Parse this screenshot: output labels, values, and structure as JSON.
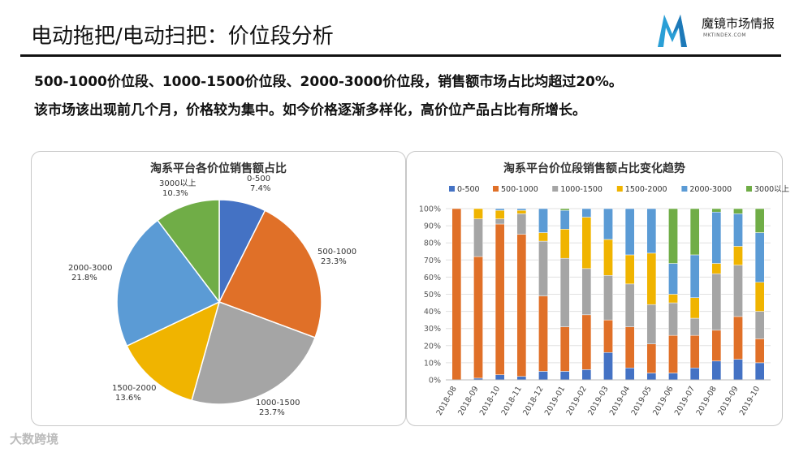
{
  "header": {
    "title": "电动拖把/电动扫把：价位段分析",
    "logo_name": "魔镜市场情报",
    "logo_url": "MKTINDEX.COM"
  },
  "summary": {
    "line1": "500-1000价位段、1000-1500价位段、2000-3000价位段，销售额市场占比均超过20%。",
    "line2": "该市场该出现前几个月，价格较为集中。如今价格逐渐多样化，高价位产品占比有所增长。"
  },
  "watermark": "大数跨境",
  "colors": {
    "c0_500": "#4472c4",
    "c500_1000": "#e07028",
    "c1000_1500": "#a5a5a5",
    "c1500_2000": "#f0b400",
    "c2000_3000": "#5b9bd5",
    "c3000": "#70ad47"
  },
  "chart_data": [
    {
      "type": "pie",
      "title": "淘系平台各价位销售额占比",
      "slices": [
        {
          "label": "0-500",
          "value": 7.4,
          "pct_text": "7.4%"
        },
        {
          "label": "500-1000",
          "value": 23.3,
          "pct_text": "23.3%"
        },
        {
          "label": "1000-1500",
          "value": 23.7,
          "pct_text": "23.7%"
        },
        {
          "label": "1500-2000",
          "value": 13.6,
          "pct_text": "13.6%"
        },
        {
          "label": "2000-3000",
          "value": 21.8,
          "pct_text": "21.8%"
        },
        {
          "label": "3000以上",
          "value": 10.3,
          "pct_text": "10.3%"
        }
      ]
    },
    {
      "type": "bar",
      "stacked": "percent",
      "title": "淘系平台价位段销售额占比变化趋势",
      "categories": [
        "2018-08",
        "2018-09",
        "2018-10",
        "2018-11",
        "2018-12",
        "2019-01",
        "2019-02",
        "2019-03",
        "2019-04",
        "2019-05",
        "2019-06",
        "2019-07",
        "2019-08",
        "2019-09",
        "2019-10"
      ],
      "yticks": [
        "0%",
        "10%",
        "20%",
        "30%",
        "40%",
        "50%",
        "60%",
        "70%",
        "80%",
        "90%",
        "100%"
      ],
      "ylim": [
        0,
        100
      ],
      "legend_position": "top",
      "series": [
        {
          "name": "0-500",
          "values": [
            0,
            1,
            3,
            2,
            5,
            5,
            6,
            16,
            7,
            4,
            4,
            7,
            11,
            12,
            10
          ]
        },
        {
          "name": "500-1000",
          "values": [
            100,
            71,
            88,
            83,
            44,
            26,
            32,
            19,
            24,
            17,
            22,
            19,
            18,
            25,
            14
          ]
        },
        {
          "name": "1000-1500",
          "values": [
            0,
            22,
            3,
            12,
            32,
            40,
            27,
            26,
            25,
            23,
            19,
            10,
            33,
            30,
            16
          ]
        },
        {
          "name": "1500-2000",
          "values": [
            0,
            6,
            5,
            2,
            5,
            17,
            30,
            21,
            17,
            30,
            5,
            12,
            6,
            11,
            17
          ]
        },
        {
          "name": "2000-3000",
          "values": [
            0,
            0,
            1,
            1,
            14,
            11,
            5,
            18,
            27,
            26,
            18,
            25,
            30,
            19,
            29
          ]
        },
        {
          "name": "3000以上",
          "values": [
            0,
            0,
            0,
            0,
            0,
            1,
            0,
            0,
            0,
            0,
            32,
            27,
            2,
            3,
            14
          ]
        }
      ]
    }
  ]
}
